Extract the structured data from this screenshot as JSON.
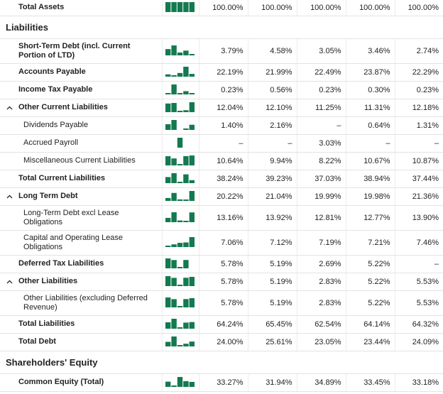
{
  "table": {
    "rows": [
      {
        "label": "Total Assets",
        "values": [
          "100.00%",
          "100.00%",
          "100.00%",
          "100.00%",
          "100.00%"
        ]
      }
    ],
    "sections": [
      {
        "title": "Liabilities",
        "rows": [
          {
            "label": "Short-Term Debt (incl. Current Portion of LTD)",
            "values": [
              "3.79%",
              "4.58%",
              "3.05%",
              "3.46%",
              "2.74%"
            ]
          },
          {
            "label": "Accounts Payable",
            "values": [
              "22.19%",
              "21.99%",
              "22.49%",
              "23.87%",
              "22.29%"
            ]
          },
          {
            "label": "Income Tax Payable",
            "values": [
              "0.23%",
              "0.56%",
              "0.23%",
              "0.30%",
              "0.23%"
            ]
          },
          {
            "label": "Other Current Liabilities",
            "values": [
              "12.04%",
              "12.10%",
              "11.25%",
              "11.31%",
              "12.18%"
            ],
            "children": [
              {
                "label": "Dividends Payable",
                "values": [
                  "1.40%",
                  "2.16%",
                  "–",
                  "0.64%",
                  "1.31%"
                ]
              },
              {
                "label": "Accrued Payroll",
                "values": [
                  "–",
                  "–",
                  "3.03%",
                  "–",
                  "–"
                ]
              },
              {
                "label": "Miscellaneous Current Liabilities",
                "values": [
                  "10.64%",
                  "9.94%",
                  "8.22%",
                  "10.67%",
                  "10.87%"
                ]
              }
            ]
          },
          {
            "label": "Total Current Liabilities",
            "values": [
              "38.24%",
              "39.23%",
              "37.03%",
              "38.94%",
              "37.44%"
            ]
          },
          {
            "label": "Long Term Debt",
            "values": [
              "20.22%",
              "21.04%",
              "19.99%",
              "19.98%",
              "21.36%"
            ],
            "children": [
              {
                "label": "Long-Term Debt excl Lease Obligations",
                "values": [
                  "13.16%",
                  "13.92%",
                  "12.81%",
                  "12.77%",
                  "13.90%"
                ]
              },
              {
                "label": "Capital and Operating Lease Obligations",
                "values": [
                  "7.06%",
                  "7.12%",
                  "7.19%",
                  "7.21%",
                  "7.46%"
                ]
              }
            ]
          },
          {
            "label": "Deferred Tax Liabilities",
            "values": [
              "5.78%",
              "5.19%",
              "2.69%",
              "5.22%",
              "–"
            ]
          },
          {
            "label": "Other Liabilities",
            "values": [
              "5.78%",
              "5.19%",
              "2.83%",
              "5.22%",
              "5.53%"
            ],
            "children": [
              {
                "label": "Other Liabilities (excluding Deferred Revenue)",
                "values": [
                  "5.78%",
                  "5.19%",
                  "2.83%",
                  "5.22%",
                  "5.53%"
                ]
              }
            ]
          },
          {
            "label": "Total Liabilities",
            "values": [
              "64.24%",
              "65.45%",
              "62.54%",
              "64.14%",
              "64.32%"
            ]
          },
          {
            "label": "Total Debt",
            "values": [
              "24.00%",
              "25.61%",
              "23.05%",
              "23.44%",
              "24.09%"
            ]
          }
        ]
      },
      {
        "title": "Shareholders' Equity",
        "rows": [
          {
            "label": "Common Equity (Total)",
            "values": [
              "33.27%",
              "31.94%",
              "34.89%",
              "33.45%",
              "33.18%"
            ]
          }
        ]
      }
    ]
  }
}
